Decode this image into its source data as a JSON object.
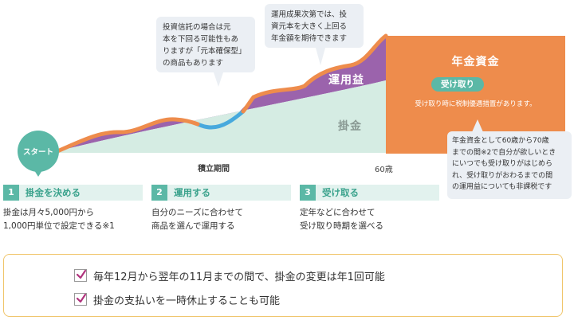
{
  "colors": {
    "teal": "#5bb8a6",
    "orange": "#ee8c4c",
    "purple": "#9b63ac",
    "mint": "#d5ece3",
    "blue": "#47a9dd",
    "bubble": "#ebeff4",
    "note_border": "#f0c56b",
    "check": "#b0337d"
  },
  "start_label": "スタート",
  "areas": {
    "unyoueki": "運用益",
    "kakekin": "掛金"
  },
  "nenkin": {
    "title": "年金資金",
    "receive_pill": "受け取り",
    "note": "受け取り時に税制優遇措置があります。"
  },
  "bubbles": {
    "investment_trust": [
      "投資信託の場合は元",
      "本を下回る可能性もあ",
      "りますが「元本確保型」",
      "の商品もあります"
    ],
    "performance": [
      "運用成果次第では、投",
      "資元本を大きく上回る",
      "年金額を期待できます"
    ],
    "pension_period": [
      "年金資金として60歳から70歳",
      "までの間※2で自分が欲しいとき",
      "にいつでも受け取りがはじめら",
      "れ、受け取りがおわるまでの間",
      "の運用益についても非課税です"
    ]
  },
  "period": {
    "label": "積立期間",
    "end_age": "60歳"
  },
  "steps": [
    {
      "num": "1",
      "title": "掛金を決める",
      "desc": [
        "掛金は月々5,000円から",
        "1,000円単位で設定できる※1"
      ]
    },
    {
      "num": "2",
      "title": "運用する",
      "desc": [
        "自分のニーズに合わせて",
        "商品を選んで運用する"
      ]
    },
    {
      "num": "3",
      "title": "受け取る",
      "desc": [
        "定年などに合わせて",
        "受け取り時期を選べる"
      ]
    }
  ],
  "notes": [
    "毎年12月から翌年の11月までの間で、掛金の変更は年1回可能",
    "掛金の支払いを一時休止することも可能"
  ]
}
